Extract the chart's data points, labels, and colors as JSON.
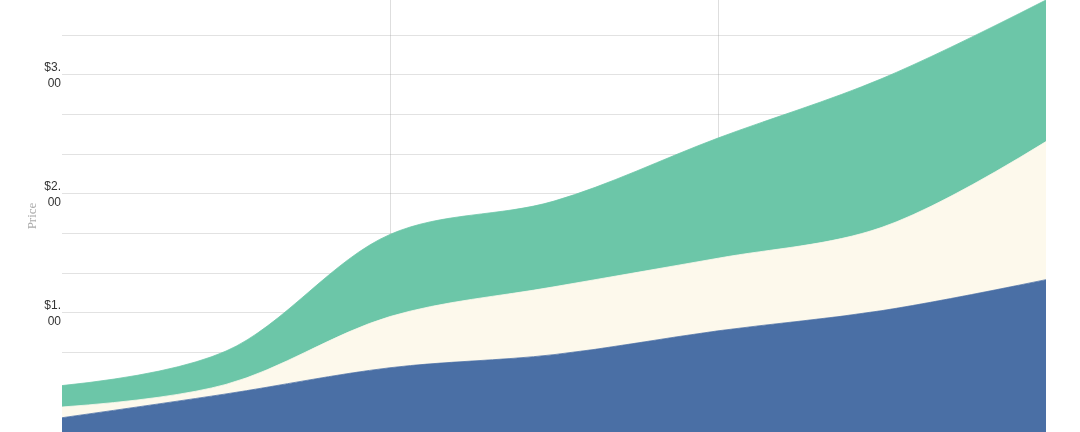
{
  "chart_data": {
    "type": "area",
    "stacked": true,
    "ylabel": "Price",
    "categories": [
      null,
      null,
      null,
      null,
      null,
      null,
      null
    ],
    "series": [
      {
        "color": "#4a6fa5",
        "values": [
          0.12,
          0.32,
          0.54,
          0.65,
          0.85,
          1.02,
          1.28
        ]
      },
      {
        "color": "#fdf9ec",
        "values": [
          0.09,
          0.08,
          0.43,
          0.57,
          0.61,
          0.7,
          1.16
        ]
      },
      {
        "color": "#6cc6a8",
        "values": [
          0.18,
          0.28,
          0.69,
          0.72,
          1.01,
          1.25,
          1.19
        ]
      }
    ],
    "ylim": [
      0,
      3.63
    ],
    "yticks": [
      {
        "value": 0.67,
        "label": null
      },
      {
        "value": 1,
        "label": "$1.00"
      },
      {
        "value": 1.33,
        "label": null
      },
      {
        "value": 1.67,
        "label": null
      },
      {
        "value": 2,
        "label": "$2.00"
      },
      {
        "value": 2.33,
        "label": null
      },
      {
        "value": 2.67,
        "label": null
      },
      {
        "value": 3,
        "label": "$3.00"
      },
      {
        "value": 3.33,
        "label": null
      }
    ],
    "grid": true
  }
}
